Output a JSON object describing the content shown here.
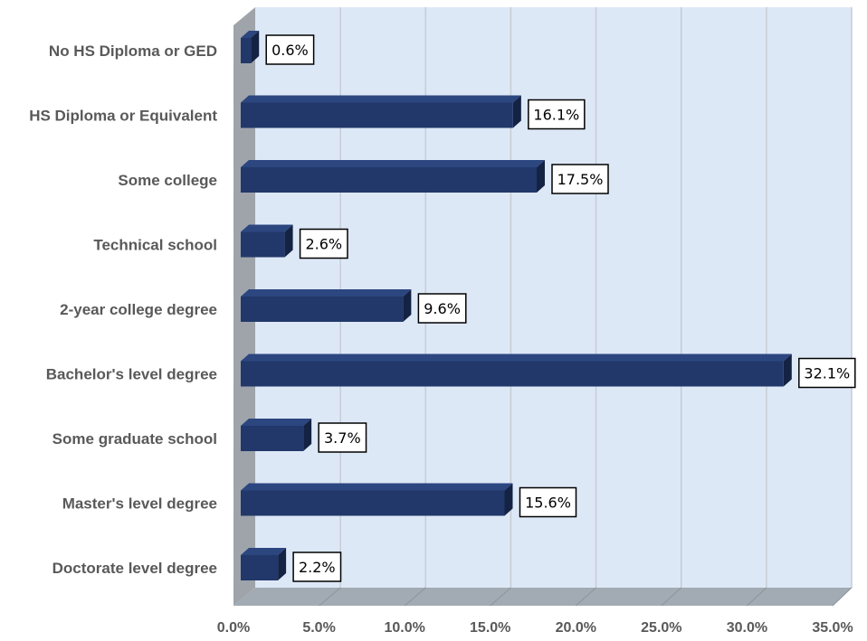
{
  "chart_data": {
    "type": "bar",
    "orientation": "horizontal",
    "three_d": true,
    "categories": [
      "No HS Diploma or GED",
      "HS Diploma or Equivalent",
      "Some college",
      "Technical school",
      "2-year college degree",
      "Bachelor's level degree",
      "Some graduate school",
      "Master's level degree",
      "Doctorate level degree"
    ],
    "values": [
      0.6,
      16.1,
      17.5,
      2.6,
      9.6,
      32.1,
      3.7,
      15.6,
      2.2
    ],
    "data_labels": [
      "0.6%",
      "16.1%",
      "17.5%",
      "2.6%",
      "9.6%",
      "32.1%",
      "3.7%",
      "15.6%",
      "2.2%"
    ],
    "x_ticks": [
      0,
      5,
      10,
      15,
      20,
      25,
      30,
      35
    ],
    "x_tick_labels": [
      "0.0%",
      "5.0%",
      "10.0%",
      "15.0%",
      "20.0%",
      "25.0%",
      "30.0%",
      "35.0%"
    ],
    "xlim": [
      0,
      35
    ],
    "title": "",
    "xlabel": "",
    "ylabel": "",
    "grid": true,
    "legend": "none",
    "colors": {
      "bar_front": "#22386a",
      "bar_top": "#2c4680",
      "bar_side": "#142244",
      "plot_back": "#dde8f7",
      "side_wall": "#9ea4aa",
      "floor": "#a2abb3",
      "gridline": "#c7ccd2"
    }
  }
}
